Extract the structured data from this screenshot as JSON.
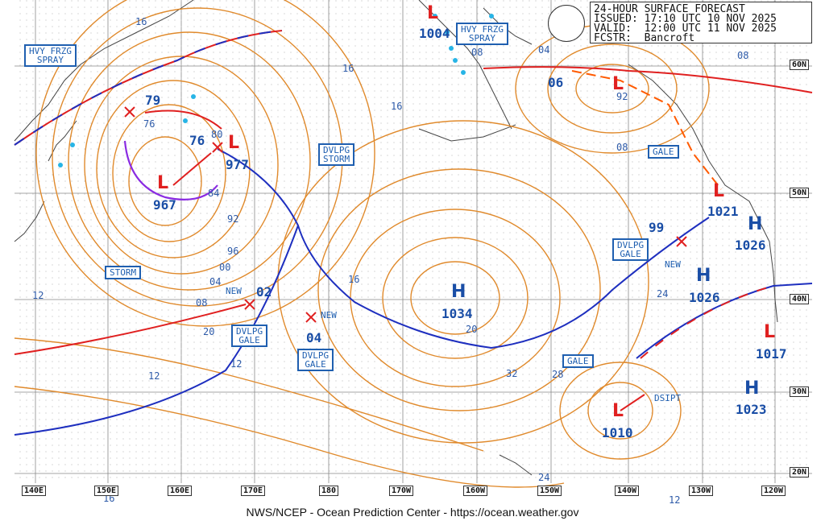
{
  "header": {
    "line1": "24-HOUR SURFACE FORECAST",
    "line2": "ISSUED: 17:10 UTC 10 NOV 2025",
    "line3": "VALID:  12:00 UTC 11 NOV 2025",
    "line4": "FCSTR:  Bancroft"
  },
  "footer": "NWS/NCEP - Ocean Prediction Center - https://ocean.weather.gov",
  "lat_labels": [
    "60N",
    "50N",
    "40N",
    "30N",
    "20N"
  ],
  "lon_labels": [
    "140E",
    "150E",
    "160E",
    "170E",
    "180",
    "170W",
    "160W",
    "150W",
    "140W",
    "130W",
    "120W"
  ],
  "pressure_systems": {
    "low_967": {
      "symbol": "L",
      "value": "967"
    },
    "low_977": {
      "symbol": "L",
      "value": "977"
    },
    "low_76": {
      "value": "76"
    },
    "low_79": {
      "value": "79"
    },
    "low_1004": {
      "symbol": "L",
      "value": "1004"
    },
    "low_06": {
      "value": "06"
    },
    "low_92": {
      "symbol": "L",
      "value": "92"
    },
    "low_1021": {
      "symbol": "L",
      "value": "1021"
    },
    "high_1026a": {
      "symbol": "H",
      "value": "1026"
    },
    "high_1026b": {
      "symbol": "H",
      "value": "1026"
    },
    "low_1017": {
      "symbol": "L",
      "value": "1017"
    },
    "high_1023": {
      "symbol": "H",
      "value": "1023"
    },
    "low_1010": {
      "symbol": "L",
      "value": "1010"
    },
    "high_1034": {
      "symbol": "H",
      "value": "1034"
    },
    "low_02": {
      "value": "02"
    },
    "low_04": {
      "value": "04"
    },
    "low_99": {
      "value": "99"
    }
  },
  "warnings": {
    "hvy_frzg_spray_w": "HVY FRZG\nSPRAY",
    "hvy_frzg_spray_e": "HVY FRZG\nSPRAY",
    "dvlpg_storm": "DVLPG\nSTORM",
    "storm": "STORM",
    "dvlpg_gale_1": "DVLPG\nGALE",
    "dvlpg_gale_2": "DVLPG\nGALE",
    "dvlpg_gale_3": "DVLPG\nGALE",
    "gale_1": "GALE",
    "gale_2": "GALE"
  },
  "notes": {
    "new1": "NEW",
    "new2": "NEW",
    "new3": "NEW",
    "dsipt": "DSIPT"
  },
  "isobar_labels": [
    "16",
    "16",
    "16",
    "08",
    "04",
    "08",
    "08",
    "76",
    "80",
    "84",
    "92",
    "96",
    "00",
    "04",
    "08",
    "12",
    "16",
    "20",
    "12",
    "20",
    "32",
    "28",
    "24",
    "24",
    "16",
    "12",
    "12"
  ],
  "colors": {
    "isobar": "#e08a2c",
    "warm_front": "#e02020",
    "cold_front": "#1e2fbf",
    "occluded": "#8a2be2",
    "text": "#1a4ea6",
    "ice": "#27b4e6"
  }
}
